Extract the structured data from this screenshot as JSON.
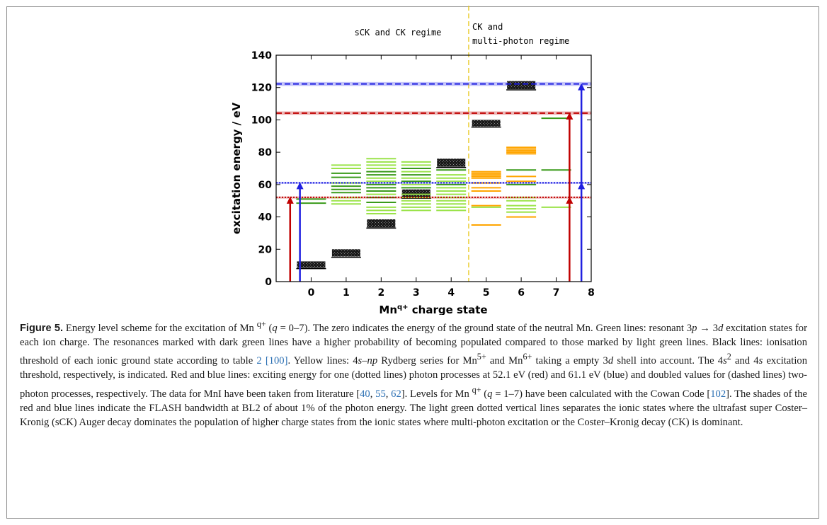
{
  "chart_data": {
    "type": "scatter",
    "xlabel": "Mn^q+ charge state",
    "ylabel": "excitation energy / eV",
    "xlim": [
      -1,
      8
    ],
    "ylim": [
      0,
      140
    ],
    "x_ticks": [
      0,
      1,
      2,
      3,
      4,
      5,
      6,
      7,
      8
    ],
    "y_ticks": [
      0,
      20,
      40,
      60,
      80,
      100,
      120,
      140
    ],
    "grid": false,
    "annotations": {
      "regime_left": "sCK and CK regime",
      "regime_right_1": "CK and",
      "regime_right_2": "multi-photon regime",
      "regime_separator_x": 4.5
    },
    "photon_lines": [
      {
        "color": "red",
        "style": "dotted",
        "energy": 52.1
      },
      {
        "color": "blue",
        "style": "dotted",
        "energy": 61.1
      },
      {
        "color": "red",
        "style": "dashed",
        "energy": 104.2
      },
      {
        "color": "blue",
        "style": "dashed",
        "energy": 122.2
      }
    ],
    "arrows": [
      {
        "color": "red",
        "x": -0.6,
        "tips": [
          52.1
        ]
      },
      {
        "color": "blue",
        "x": -0.32,
        "tips": [
          61.1
        ]
      },
      {
        "color": "red",
        "x": 7.38,
        "tips": [
          52.1,
          104.2
        ]
      },
      {
        "color": "blue",
        "x": 7.72,
        "tips": [
          61.1,
          122.2
        ]
      }
    ],
    "ionisation_thresholds": [
      {
        "q": 0,
        "low": 8.5,
        "high": 12.5
      },
      {
        "q": 1,
        "low": 15.5,
        "high": 20
      },
      {
        "q": 2,
        "low": 33.5,
        "high": 38.5
      },
      {
        "q": 3,
        "low": 52,
        "high": 57
      },
      {
        "q": 4,
        "low": 71,
        "high": 76
      },
      {
        "q": 5,
        "low": 96,
        "high": 100
      },
      {
        "q": 6,
        "low": 119,
        "high": 124
      }
    ],
    "resonances_dark_green": [
      {
        "q": 0,
        "e": [
          48.5,
          51
        ]
      },
      {
        "q": 1,
        "e": [
          55,
          57,
          59,
          64.5,
          67
        ]
      },
      {
        "q": 2,
        "e": [
          49,
          52,
          56,
          58,
          60,
          66,
          68
        ]
      },
      {
        "q": 3,
        "e": [
          58,
          62,
          66,
          70
        ]
      },
      {
        "q": 4,
        "e": [
          60,
          69
        ]
      },
      {
        "q": 6,
        "e": [
          60,
          69
        ]
      },
      {
        "q": 7,
        "e": [
          69,
          101
        ]
      }
    ],
    "resonances_light_green": [
      {
        "q": 1,
        "e": [
          48,
          50,
          52,
          61,
          70,
          72
        ]
      },
      {
        "q": 2,
        "e": [
          42,
          44,
          46,
          54,
          62,
          64,
          70,
          72,
          74,
          76
        ]
      },
      {
        "q": 3,
        "e": [
          44,
          46,
          48,
          50,
          52,
          54,
          60,
          64,
          68,
          72,
          74
        ]
      },
      {
        "q": 4,
        "e": [
          44,
          46,
          48,
          50,
          52,
          54,
          56,
          58,
          62,
          64,
          66
        ]
      },
      {
        "q": 5,
        "e": [
          46
        ]
      },
      {
        "q": 6,
        "e": [
          43,
          45,
          47,
          50,
          52
        ]
      },
      {
        "q": 7,
        "e": [
          46
        ]
      }
    ],
    "rydberg_yellow": [
      {
        "q": 5,
        "e": [
          35,
          47,
          56,
          58,
          61,
          64,
          65,
          66,
          67,
          68
        ]
      },
      {
        "q": 6,
        "e": [
          40,
          62,
          65,
          79,
          80,
          81,
          82,
          83
        ]
      }
    ]
  },
  "caption": {
    "label": "Figure 5.",
    "s1a": " Energy level scheme for the excitation of Mn ",
    "q": "q+",
    "s1b": " (",
    "qvar": "q",
    "s1c": " = 0–7). The zero indicates the energy of the ground state of the neutral Mn. Green lines: resonant 3",
    "p": "p",
    "arrow": " → ",
    "d3": " 3",
    "d": "d",
    "s2": " excitation states for each ion charge. The resonances marked with dark green lines have a higher probability of becoming populated compared to those marked by light green lines. Black lines: ionisation threshold of each ionic ground state according to table ",
    "ref_table": "2",
    "ref_100": "[100]",
    "s3": ". Yellow lines: 4",
    "s": "s",
    "s3b": "–",
    "np": "np",
    "s3c": " Rydberg series for Mn",
    "sup5": "5+",
    "s3d": " and Mn",
    "sup6": "6+",
    "s3e": " taking a empty 3",
    "s3f": " shell into account. The 4",
    "sup2": "2",
    "s3g": " and 4",
    "s4": " excitation threshold, respectively, is indicated. Red and blue lines: exciting energy for one (dotted lines) photon processes at 52.1 eV (red) and 61.1 eV (blue) and doubled values for (dashed lines) two-photon processes, respectively. The data for MnI have been taken from literature [",
    "ref_40": "40",
    "ref_55": "55",
    "ref_62": "62",
    "s5": "]. Levels for Mn ",
    "s5b": " (",
    "s5c": " = 1–7) have been calculated with the Cowan Code [",
    "ref_102": "102",
    "s6": "]. The shades of the red and blue lines indicate the FLASH bandwidth at BL2 of about 1% of the photon energy. The light green dotted vertical lines separates the ionic states where the ultrafast super Coster–Kronig (sCK) Auger decay dominates the population of higher charge states from the ionic states where multi-photon excitation or the Coster–Kronig decay (CK) is dominant."
  }
}
